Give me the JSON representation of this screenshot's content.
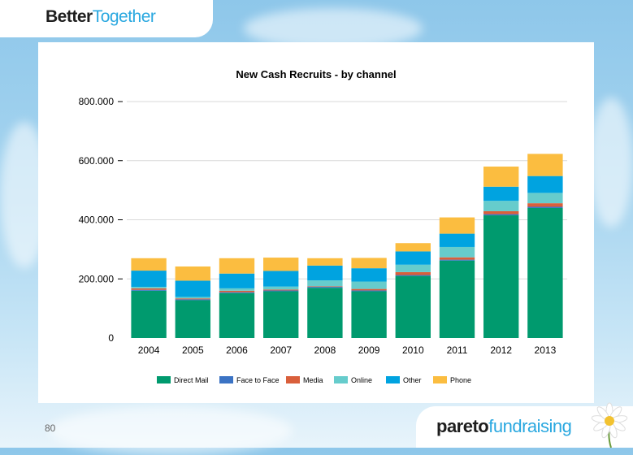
{
  "brand": {
    "better": "Better",
    "together": "Together"
  },
  "page_number": "80",
  "footer_brand": {
    "pareto": "pareto",
    "fundraising": "fundraising"
  },
  "chart_data": {
    "type": "bar",
    "stacked": true,
    "title": "New Cash Recruits - by channel",
    "categories": [
      "2004",
      "2005",
      "2006",
      "2007",
      "2008",
      "2009",
      "2010",
      "2011",
      "2012",
      "2013"
    ],
    "ylim": [
      0,
      800000
    ],
    "yticks": [
      0,
      200000,
      400000,
      600000,
      800000
    ],
    "ytick_labels": [
      "0",
      "200.000",
      "400.000",
      "600.000",
      "800.000"
    ],
    "grid": true,
    "legend_position": "bottom",
    "series": [
      {
        "name": "Direct Mail",
        "color": "#009a6e",
        "values": [
          160000,
          128000,
          152000,
          158000,
          170000,
          158000,
          210000,
          262000,
          415000,
          440000
        ]
      },
      {
        "name": "Face to Face",
        "color": "#3b73c4",
        "values": [
          3000,
          3000,
          3000,
          3000,
          3000,
          3000,
          3000,
          3000,
          4000,
          4000
        ]
      },
      {
        "name": "Media",
        "color": "#d95f3b",
        "values": [
          5000,
          3000,
          5000,
          3000,
          2000,
          5000,
          10000,
          8000,
          10000,
          12000
        ]
      },
      {
        "name": "Online",
        "color": "#66cccc",
        "values": [
          5000,
          5000,
          8000,
          10000,
          20000,
          25000,
          25000,
          35000,
          35000,
          35000
        ]
      },
      {
        "name": "Other",
        "color": "#00a3e0",
        "values": [
          55000,
          55000,
          50000,
          53000,
          50000,
          45000,
          45000,
          45000,
          48000,
          57000
        ]
      },
      {
        "name": "Phone",
        "color": "#fbbd40",
        "values": [
          42000,
          48000,
          52000,
          45000,
          25000,
          35000,
          28000,
          55000,
          68000,
          75000
        ]
      }
    ]
  }
}
